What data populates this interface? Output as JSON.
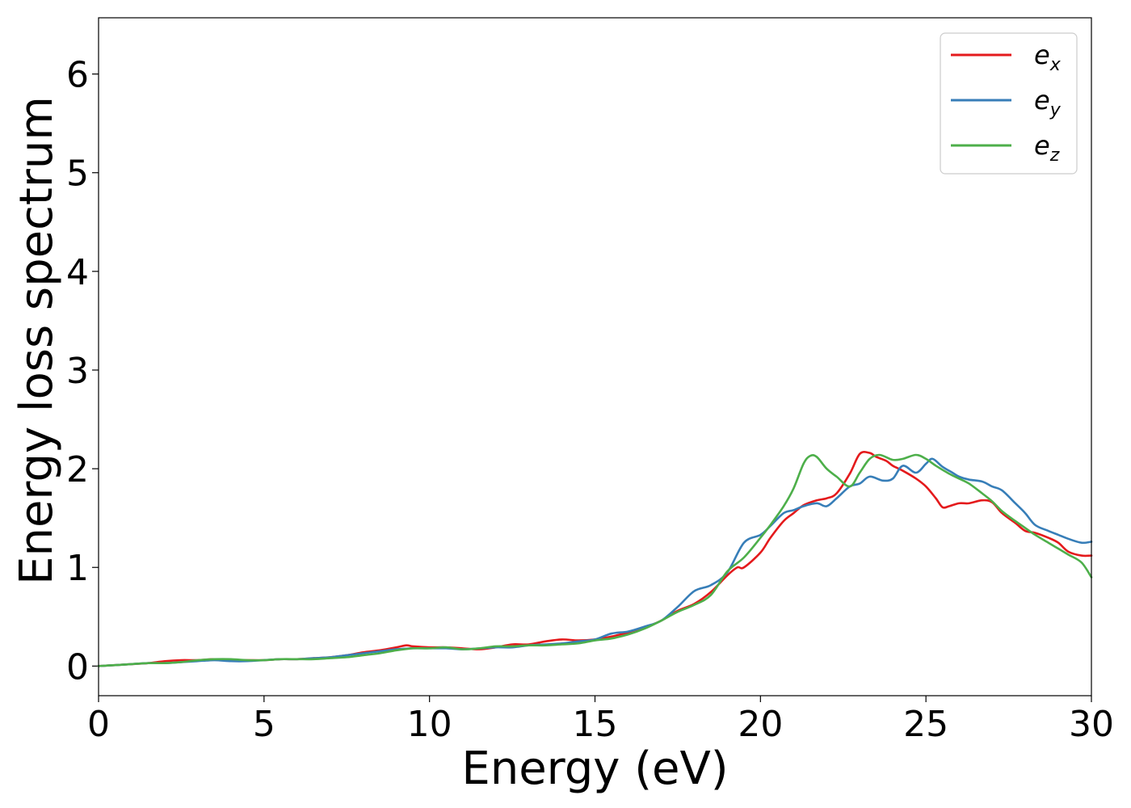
{
  "chart_data": {
    "type": "line",
    "title": "",
    "xlabel": "Energy (eV)",
    "ylabel": "Energy loss spectrum",
    "xlim": [
      0,
      30
    ],
    "ylim": [
      -0.3,
      6.57
    ],
    "xticks": [
      0,
      5,
      10,
      15,
      20,
      25,
      30
    ],
    "xtick_labels": [
      "0",
      "5",
      "10",
      "15",
      "20",
      "25",
      "30"
    ],
    "yticks": [
      0,
      1,
      2,
      3,
      4,
      5,
      6
    ],
    "ytick_labels": [
      "0",
      "1",
      "2",
      "3",
      "4",
      "5",
      "6"
    ],
    "grid": false,
    "legend": {
      "position": "top-right"
    },
    "series": [
      {
        "name": "e_x",
        "label_base": "e",
        "label_sub": "x",
        "color": "#e41a1c",
        "x": [
          0,
          0.5,
          1,
          1.5,
          2,
          2.5,
          3,
          3.5,
          4,
          4.5,
          5,
          5.5,
          6,
          6.5,
          7,
          7.5,
          8,
          8.5,
          9,
          9.3,
          9.5,
          10,
          10.5,
          11,
          11.5,
          12,
          12.5,
          13,
          13.5,
          14,
          14.5,
          15,
          15.5,
          16,
          16.5,
          17,
          17.5,
          18,
          18.5,
          19,
          19.3,
          19.5,
          20,
          20.3,
          20.7,
          21,
          21.3,
          21.7,
          22,
          22.3,
          22.7,
          23,
          23.3,
          23.5,
          23.8,
          24,
          24.3,
          24.7,
          25,
          25.3,
          25.5,
          25.7,
          26,
          26.3,
          26.7,
          27,
          27.3,
          27.7,
          28,
          28.3,
          28.7,
          29,
          29.3,
          29.7,
          30
        ],
        "y": [
          0.0,
          0.01,
          0.02,
          0.03,
          0.05,
          0.06,
          0.06,
          0.07,
          0.06,
          0.06,
          0.06,
          0.07,
          0.07,
          0.08,
          0.09,
          0.11,
          0.14,
          0.16,
          0.19,
          0.21,
          0.2,
          0.19,
          0.19,
          0.18,
          0.17,
          0.19,
          0.22,
          0.22,
          0.25,
          0.27,
          0.26,
          0.27,
          0.3,
          0.34,
          0.39,
          0.46,
          0.56,
          0.63,
          0.75,
          0.92,
          1.0,
          1.0,
          1.15,
          1.3,
          1.47,
          1.55,
          1.63,
          1.68,
          1.7,
          1.75,
          1.95,
          2.15,
          2.16,
          2.12,
          2.08,
          2.03,
          1.98,
          1.9,
          1.82,
          1.7,
          1.61,
          1.62,
          1.65,
          1.65,
          1.68,
          1.66,
          1.55,
          1.45,
          1.37,
          1.35,
          1.3,
          1.25,
          1.16,
          1.12,
          1.12
        ]
      },
      {
        "name": "e_y",
        "label_base": "e",
        "label_sub": "y",
        "color": "#377eb8",
        "x": [
          0,
          0.5,
          1,
          1.5,
          2,
          2.5,
          3,
          3.5,
          4,
          4.5,
          5,
          5.5,
          6,
          6.5,
          7,
          7.5,
          8,
          8.5,
          9,
          9.5,
          10,
          10.5,
          11,
          11.5,
          12,
          12.5,
          13,
          13.5,
          14,
          14.5,
          15,
          15.5,
          16,
          16.5,
          17,
          17.5,
          18,
          18.5,
          19,
          19.5,
          20,
          20.3,
          20.7,
          21,
          21.3,
          21.7,
          22,
          22.3,
          22.7,
          23,
          23.3,
          23.7,
          24,
          24.3,
          24.7,
          25,
          25.2,
          25.5,
          25.8,
          26,
          26.3,
          26.7,
          27,
          27.3,
          27.7,
          28,
          28.3,
          28.7,
          29,
          29.3,
          29.7,
          30
        ],
        "y": [
          0.0,
          0.01,
          0.02,
          0.03,
          0.03,
          0.04,
          0.05,
          0.06,
          0.05,
          0.05,
          0.06,
          0.07,
          0.07,
          0.08,
          0.09,
          0.11,
          0.13,
          0.15,
          0.17,
          0.18,
          0.18,
          0.18,
          0.17,
          0.18,
          0.19,
          0.19,
          0.21,
          0.22,
          0.23,
          0.25,
          0.27,
          0.33,
          0.35,
          0.4,
          0.46,
          0.6,
          0.76,
          0.82,
          0.95,
          1.25,
          1.33,
          1.42,
          1.55,
          1.58,
          1.62,
          1.65,
          1.62,
          1.7,
          1.82,
          1.85,
          1.92,
          1.88,
          1.9,
          2.03,
          1.96,
          2.05,
          2.1,
          2.02,
          1.96,
          1.92,
          1.89,
          1.87,
          1.82,
          1.78,
          1.65,
          1.55,
          1.43,
          1.37,
          1.33,
          1.29,
          1.25,
          1.26
        ]
      },
      {
        "name": "e_z",
        "label_base": "e",
        "label_sub": "z",
        "color": "#4daf4a",
        "x": [
          0,
          0.5,
          1,
          1.5,
          2,
          2.5,
          3,
          3.5,
          4,
          4.5,
          5,
          5.5,
          6,
          6.5,
          7,
          7.5,
          8,
          8.5,
          9,
          9.5,
          10,
          10.5,
          11,
          11.5,
          12,
          12.5,
          13,
          13.5,
          14,
          14.5,
          15,
          15.5,
          16,
          16.5,
          17,
          17.5,
          18,
          18.5,
          19,
          19.5,
          20,
          20.3,
          20.7,
          21,
          21.3,
          21.5,
          21.7,
          22,
          22.3,
          22.7,
          23,
          23.3,
          23.6,
          24,
          24.3,
          24.7,
          25,
          25.3,
          25.7,
          26,
          26.3,
          26.7,
          27,
          27.3,
          27.7,
          28,
          28.3,
          28.7,
          29,
          29.3,
          29.7,
          30
        ],
        "y": [
          0.0,
          0.01,
          0.02,
          0.03,
          0.03,
          0.04,
          0.06,
          0.07,
          0.07,
          0.06,
          0.06,
          0.07,
          0.07,
          0.07,
          0.08,
          0.09,
          0.11,
          0.13,
          0.16,
          0.18,
          0.18,
          0.19,
          0.17,
          0.18,
          0.2,
          0.2,
          0.21,
          0.21,
          0.22,
          0.23,
          0.26,
          0.28,
          0.32,
          0.38,
          0.46,
          0.55,
          0.62,
          0.72,
          0.96,
          1.1,
          1.3,
          1.43,
          1.62,
          1.8,
          2.05,
          2.13,
          2.12,
          2.0,
          1.92,
          1.82,
          1.96,
          2.1,
          2.14,
          2.09,
          2.1,
          2.14,
          2.1,
          2.03,
          1.95,
          1.9,
          1.85,
          1.75,
          1.67,
          1.57,
          1.47,
          1.4,
          1.33,
          1.25,
          1.19,
          1.13,
          1.05,
          0.9
        ]
      }
    ]
  }
}
